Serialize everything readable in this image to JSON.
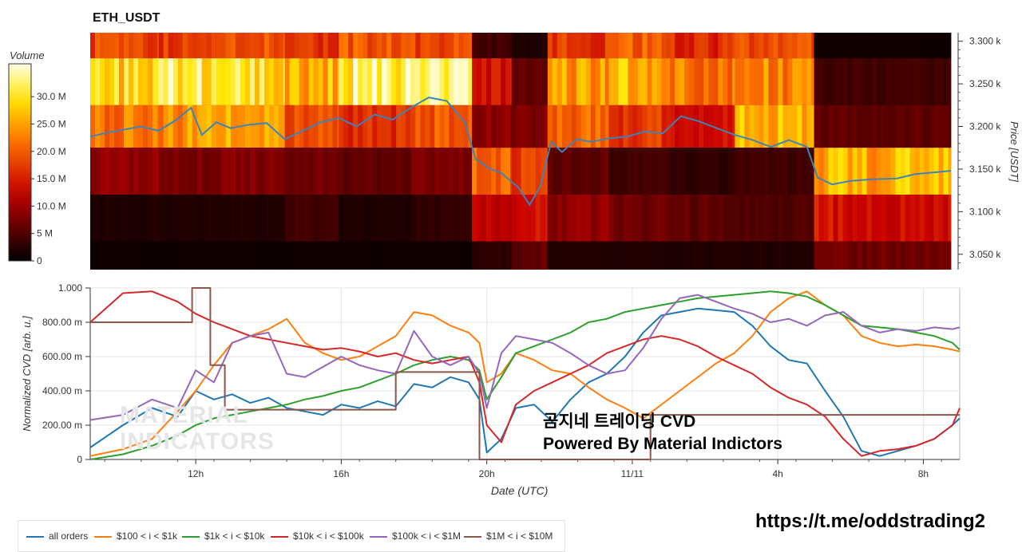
{
  "title": "ETH_USDT",
  "volume_colorbar": {
    "label": "Volume",
    "ticks": [
      "0",
      "5 M",
      "10.0 M",
      "15.0 M",
      "20.0 M",
      "25.0 M",
      "30.0 M"
    ],
    "tick_values": [
      0,
      5,
      10,
      15,
      20,
      25,
      30
    ],
    "max": 36
  },
  "price_axis": {
    "label": "Price [USDT]",
    "ticks": [
      "3.050 k",
      "3.100 k",
      "3.150 k",
      "3.200 k",
      "3.250 k",
      "3.300 k"
    ],
    "tick_values": [
      3050,
      3100,
      3150,
      3200,
      3250,
      3300
    ],
    "ylim": [
      3032,
      3310
    ]
  },
  "cvd_axis": {
    "label": "Normalized CVD [arb. u.]",
    "ticks": [
      "0",
      "200.00 m",
      "400.00 m",
      "600.00 m",
      "800.00 m",
      "1.000"
    ],
    "tick_values": [
      0,
      0.2,
      0.4,
      0.6,
      0.8,
      1.0
    ],
    "ylim": [
      0,
      1
    ]
  },
  "x_axis": {
    "label": "Date (UTC)",
    "ticks": [
      "12h",
      "16h",
      "20h",
      "11/11",
      "4h",
      "8h"
    ],
    "tick_values": [
      12,
      16,
      20,
      24,
      28,
      32
    ],
    "xlim": [
      9.1,
      33.0
    ]
  },
  "colors": {
    "all_orders": "#1f77b4",
    "r100_1k": "#ff7f0e",
    "r1k_10k": "#2ca02c",
    "r10k_100k": "#d62728",
    "r100k_1m": "#9467bd",
    "r1m_10m": "#8c564b",
    "price_line": "#3f83b7"
  },
  "watermark": {
    "line1": "곰지네 트레이딩 CVD",
    "line2": "Powered By Material Indictors",
    "ghost_logo_1": "MATERIAL",
    "ghost_logo_2": "INDICATORS"
  },
  "link": "https://t.me/oddstrading2",
  "legend": {
    "all_orders": "all orders",
    "r100_1k": "$100 < i < $1k",
    "r1k_10k": "$1k < i < $10k",
    "r10k_100k": "$10k < i < $100k",
    "r100k_1m": "$100k < i < $1M",
    "r1m_10m": "$1M < i < $10M"
  },
  "chart_data": [
    {
      "type": "heatmap",
      "title": "ETH_USDT",
      "colorbar_label": "Volume",
      "ylabel": "Price [USDT]",
      "price_bands": [
        [
          3280,
          3310
        ],
        [
          3225,
          3280
        ],
        [
          3175,
          3225
        ],
        [
          3120,
          3175
        ],
        [
          3065,
          3120
        ],
        [
          3032,
          3065
        ]
      ],
      "segments": [
        {
          "x": [
            9.1,
            11.0
          ],
          "volume_m": [
            18,
            28,
            22,
            9,
            2,
            1
          ]
        },
        {
          "x": [
            11.0,
            12.6
          ],
          "volume_m": [
            17,
            31,
            24,
            8,
            2,
            1
          ]
        },
        {
          "x": [
            12.6,
            14.5
          ],
          "volume_m": [
            19,
            29,
            25,
            8,
            2,
            1
          ]
        },
        {
          "x": [
            14.5,
            16.0
          ],
          "volume_m": [
            16,
            26,
            19,
            7,
            4,
            1
          ]
        },
        {
          "x": [
            16.0,
            18.0
          ],
          "volume_m": [
            20,
            32,
            16,
            6,
            2,
            1
          ]
        },
        {
          "x": [
            18.0,
            19.7
          ],
          "volume_m": [
            18,
            31,
            20,
            8,
            3,
            1
          ]
        },
        {
          "x": [
            19.7,
            20.8
          ],
          "volume_m": [
            4,
            14,
            9,
            20,
            12,
            3
          ]
        },
        {
          "x": [
            20.8,
            21.8
          ],
          "volume_m": [
            2,
            6,
            8,
            17,
            14,
            6
          ]
        },
        {
          "x": [
            21.8,
            23.5
          ],
          "volume_m": [
            17,
            24,
            21,
            6,
            9,
            2
          ]
        },
        {
          "x": [
            23.5,
            25.2
          ],
          "volume_m": [
            20,
            26,
            17,
            4,
            7,
            2
          ]
        },
        {
          "x": [
            25.2,
            27.0
          ],
          "volume_m": [
            16,
            22,
            14,
            3,
            6,
            2
          ]
        },
        {
          "x": [
            27.0,
            29.2
          ],
          "volume_m": [
            19,
            23,
            26,
            4,
            5,
            2
          ]
        },
        {
          "x": [
            29.2,
            33.0
          ],
          "volume_m": [
            1,
            4,
            6,
            26,
            14,
            7
          ]
        }
      ],
      "price_line": {
        "x": [
          9.1,
          9.6,
          10.0,
          10.5,
          11.0,
          11.5,
          11.9,
          12.2,
          12.6,
          13.0,
          13.5,
          14.0,
          14.5,
          15.0,
          15.5,
          16.0,
          16.5,
          17.0,
          17.5,
          18.0,
          18.5,
          19.0,
          19.5,
          19.8,
          20.2,
          20.5,
          20.8,
          21.0,
          21.3,
          21.6,
          21.9,
          22.2,
          22.6,
          23.0,
          23.5,
          24.0,
          24.5,
          25.0,
          25.5,
          26.0,
          26.5,
          27.0,
          27.5,
          28.0,
          28.5,
          29.0,
          29.3,
          29.7,
          30.2,
          30.8,
          31.5,
          32.0,
          32.5,
          33.0
        ],
        "y": [
          3188,
          3193,
          3196,
          3200,
          3195,
          3208,
          3222,
          3190,
          3205,
          3198,
          3202,
          3204,
          3185,
          3195,
          3205,
          3210,
          3200,
          3214,
          3208,
          3222,
          3234,
          3230,
          3205,
          3162,
          3150,
          3146,
          3135,
          3128,
          3108,
          3130,
          3182,
          3170,
          3185,
          3182,
          3186,
          3188,
          3194,
          3192,
          3212,
          3206,
          3198,
          3190,
          3184,
          3176,
          3184,
          3176,
          3140,
          3132,
          3136,
          3138,
          3139,
          3144,
          3146,
          3148
        ]
      }
    },
    {
      "type": "line",
      "xlabel": "Date (UTC)",
      "ylabel": "Normalized CVD [arb. u.]",
      "ylim": [
        0,
        1
      ],
      "series": [
        {
          "key": "all_orders",
          "name": "all orders",
          "x": [
            9.1,
            10.0,
            10.8,
            11.5,
            12.0,
            12.5,
            13.0,
            13.5,
            14.0,
            14.5,
            15.0,
            15.5,
            16.0,
            16.5,
            17.0,
            17.5,
            18.0,
            18.5,
            19.0,
            19.5,
            19.8,
            20.0,
            20.4,
            20.8,
            21.3,
            21.8,
            22.3,
            22.8,
            23.3,
            23.8,
            24.3,
            24.8,
            25.3,
            25.8,
            26.3,
            26.8,
            27.3,
            27.8,
            28.3,
            28.8,
            29.3,
            29.8,
            30.3,
            30.8,
            31.3,
            31.8,
            32.3,
            32.8,
            33.0
          ],
          "y": [
            0.07,
            0.2,
            0.3,
            0.25,
            0.4,
            0.35,
            0.38,
            0.33,
            0.36,
            0.3,
            0.28,
            0.26,
            0.32,
            0.3,
            0.34,
            0.31,
            0.44,
            0.42,
            0.48,
            0.45,
            0.35,
            0.04,
            0.12,
            0.3,
            0.32,
            0.22,
            0.35,
            0.45,
            0.5,
            0.6,
            0.74,
            0.84,
            0.86,
            0.88,
            0.87,
            0.86,
            0.78,
            0.66,
            0.58,
            0.56,
            0.4,
            0.25,
            0.05,
            0.02,
            0.05,
            0.08,
            0.12,
            0.2,
            0.24
          ]
        },
        {
          "key": "r100_1k",
          "name": "$100 < i < $1k",
          "x": [
            9.1,
            10.0,
            10.8,
            11.5,
            12.0,
            12.5,
            13.0,
            13.5,
            14.0,
            14.5,
            15.0,
            15.5,
            16.0,
            16.5,
            17.0,
            17.5,
            18.0,
            18.5,
            19.0,
            19.5,
            19.8,
            20.0,
            20.4,
            20.8,
            21.3,
            21.8,
            22.3,
            22.8,
            23.3,
            23.8,
            24.3,
            24.8,
            25.3,
            25.8,
            26.3,
            26.8,
            27.3,
            27.8,
            28.3,
            28.8,
            29.3,
            29.8,
            30.3,
            30.8,
            31.3,
            31.8,
            32.3,
            32.8,
            33.0
          ],
          "y": [
            0.02,
            0.06,
            0.12,
            0.28,
            0.4,
            0.55,
            0.68,
            0.72,
            0.76,
            0.82,
            0.68,
            0.62,
            0.58,
            0.6,
            0.66,
            0.72,
            0.86,
            0.84,
            0.78,
            0.74,
            0.68,
            0.45,
            0.5,
            0.62,
            0.58,
            0.52,
            0.5,
            0.42,
            0.35,
            0.3,
            0.24,
            0.32,
            0.4,
            0.48,
            0.56,
            0.62,
            0.72,
            0.86,
            0.94,
            0.98,
            0.9,
            0.84,
            0.72,
            0.68,
            0.66,
            0.67,
            0.66,
            0.64,
            0.63
          ]
        },
        {
          "key": "r1k_10k",
          "name": "$1k < i < $10k",
          "x": [
            9.1,
            10.0,
            10.8,
            11.5,
            12.0,
            12.5,
            13.0,
            13.5,
            14.0,
            14.5,
            15.0,
            15.5,
            16.0,
            16.5,
            17.0,
            17.5,
            18.0,
            18.5,
            19.0,
            19.5,
            19.8,
            20.0,
            20.4,
            20.8,
            21.3,
            21.8,
            22.3,
            22.8,
            23.3,
            23.8,
            24.3,
            24.8,
            25.3,
            25.8,
            26.3,
            26.8,
            27.3,
            27.8,
            28.3,
            28.8,
            29.3,
            29.8,
            30.3,
            30.8,
            31.3,
            31.8,
            32.3,
            32.8,
            33.0
          ],
          "y": [
            0.0,
            0.03,
            0.08,
            0.14,
            0.2,
            0.24,
            0.26,
            0.28,
            0.3,
            0.32,
            0.35,
            0.37,
            0.4,
            0.42,
            0.46,
            0.5,
            0.55,
            0.58,
            0.6,
            0.58,
            0.52,
            0.35,
            0.48,
            0.62,
            0.66,
            0.7,
            0.74,
            0.8,
            0.82,
            0.86,
            0.88,
            0.9,
            0.92,
            0.94,
            0.95,
            0.96,
            0.97,
            0.98,
            0.97,
            0.95,
            0.9,
            0.84,
            0.78,
            0.77,
            0.76,
            0.74,
            0.72,
            0.68,
            0.64
          ]
        },
        {
          "key": "r10k_100k",
          "name": "$10k < i < $100k",
          "x": [
            9.1,
            10.0,
            10.8,
            11.5,
            12.0,
            12.5,
            13.0,
            13.5,
            14.0,
            14.5,
            15.0,
            15.5,
            16.0,
            16.5,
            17.0,
            17.5,
            18.0,
            18.5,
            19.0,
            19.5,
            19.8,
            20.0,
            20.4,
            20.8,
            21.3,
            21.8,
            22.3,
            22.8,
            23.3,
            23.8,
            24.3,
            24.8,
            25.3,
            25.8,
            26.3,
            26.8,
            27.3,
            27.8,
            28.3,
            28.8,
            29.3,
            29.8,
            30.3,
            30.8,
            31.3,
            31.8,
            32.3,
            32.8,
            33.0
          ],
          "y": [
            0.8,
            0.97,
            0.98,
            0.92,
            0.85,
            0.8,
            0.76,
            0.72,
            0.7,
            0.68,
            0.66,
            0.64,
            0.65,
            0.63,
            0.6,
            0.62,
            0.58,
            0.56,
            0.58,
            0.6,
            0.45,
            0.2,
            0.1,
            0.32,
            0.4,
            0.45,
            0.5,
            0.55,
            0.62,
            0.66,
            0.7,
            0.72,
            0.7,
            0.66,
            0.6,
            0.55,
            0.5,
            0.42,
            0.36,
            0.32,
            0.25,
            0.12,
            0.02,
            0.05,
            0.06,
            0.08,
            0.12,
            0.2,
            0.3
          ]
        },
        {
          "key": "r100k_1m",
          "name": "$100k < i < $1M",
          "x": [
            9.1,
            10.0,
            10.8,
            11.5,
            12.0,
            12.5,
            13.0,
            13.5,
            14.0,
            14.5,
            15.0,
            15.5,
            16.0,
            16.5,
            17.0,
            17.5,
            18.0,
            18.5,
            19.0,
            19.5,
            19.8,
            20.0,
            20.4,
            20.8,
            21.3,
            21.8,
            22.3,
            22.8,
            23.3,
            23.8,
            24.3,
            24.8,
            25.3,
            25.8,
            26.3,
            26.8,
            27.3,
            27.8,
            28.3,
            28.8,
            29.3,
            29.8,
            30.3,
            30.8,
            31.3,
            31.8,
            32.3,
            32.8,
            33.0
          ],
          "y": [
            0.23,
            0.26,
            0.35,
            0.3,
            0.52,
            0.45,
            0.68,
            0.72,
            0.74,
            0.5,
            0.48,
            0.54,
            0.6,
            0.55,
            0.52,
            0.5,
            0.75,
            0.6,
            0.55,
            0.6,
            0.5,
            0.3,
            0.62,
            0.72,
            0.7,
            0.68,
            0.62,
            0.55,
            0.5,
            0.52,
            0.65,
            0.82,
            0.94,
            0.96,
            0.92,
            0.88,
            0.85,
            0.8,
            0.82,
            0.78,
            0.84,
            0.86,
            0.78,
            0.74,
            0.76,
            0.75,
            0.77,
            0.76,
            0.77
          ]
        },
        {
          "key": "r1m_10m",
          "name": "$1M < i < $10M",
          "x": [
            9.1,
            11.9,
            11.9,
            12.4,
            12.4,
            12.8,
            12.8,
            17.5,
            17.5,
            19.8,
            19.8,
            20.1,
            20.1,
            24.5,
            24.5,
            33.0
          ],
          "y": [
            0.8,
            0.8,
            1.0,
            1.0,
            0.55,
            0.55,
            0.29,
            0.29,
            0.51,
            0.51,
            0.0,
            0.0,
            0.0,
            0.0,
            0.26,
            0.26
          ]
        }
      ]
    }
  ]
}
